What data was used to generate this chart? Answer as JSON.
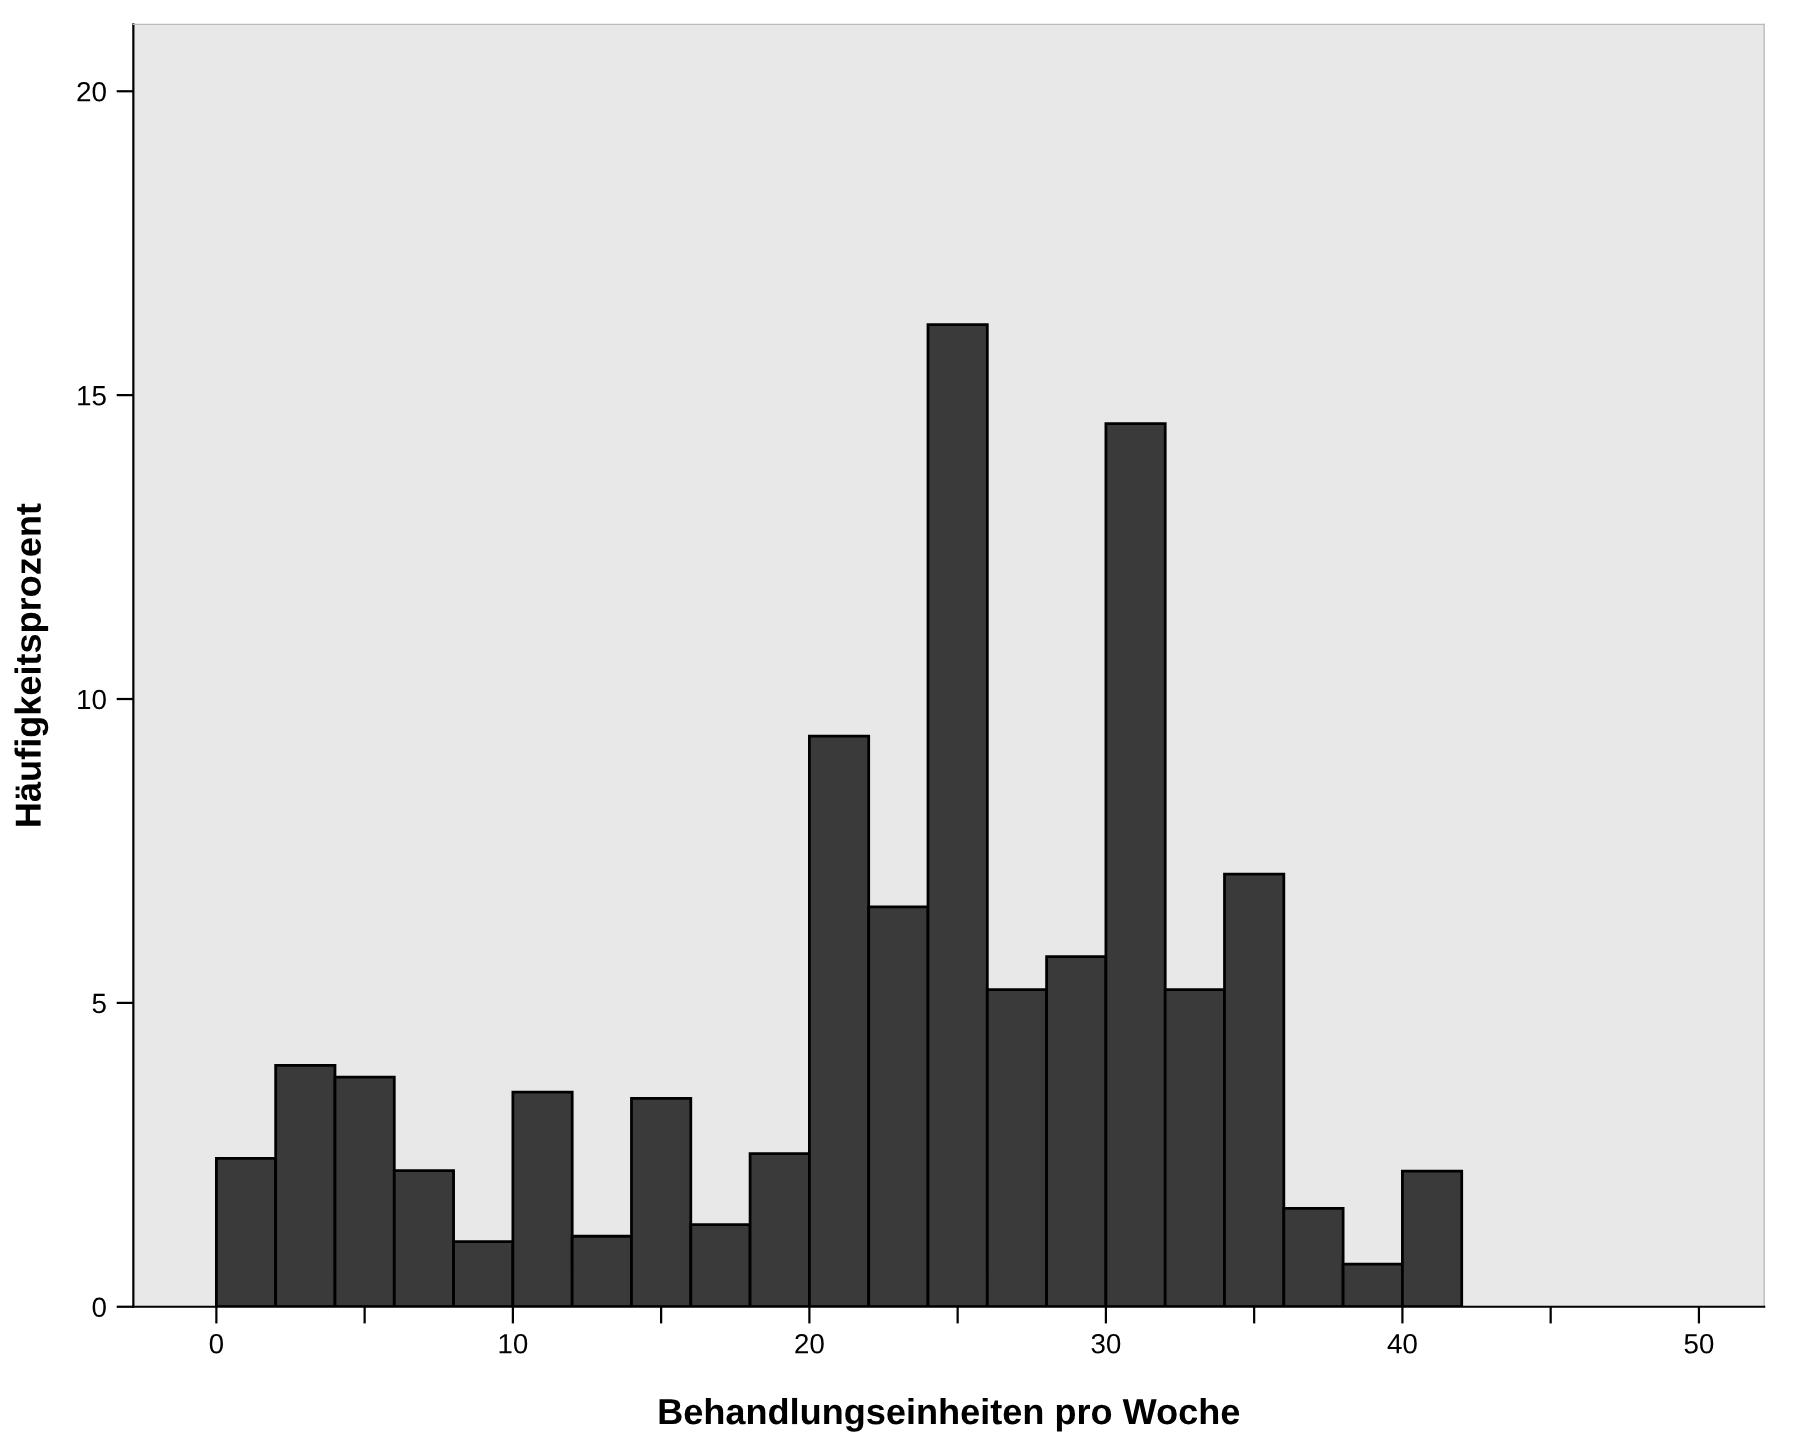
{
  "chart_data": {
    "type": "histogram",
    "xlabel": "Behandlungseinheiten pro Woche",
    "ylabel": "Häufigkeitsprozent",
    "bins": [
      0,
      2,
      4,
      6,
      8,
      10,
      12,
      14,
      16,
      18,
      20,
      22,
      24,
      26,
      28,
      30,
      32,
      34,
      36,
      38,
      40,
      42
    ],
    "values": [
      2.44,
      3.97,
      3.78,
      2.24,
      1.07,
      3.53,
      1.16,
      3.43,
      1.35,
      2.52,
      9.39,
      6.58,
      16.16,
      5.22,
      5.76,
      14.53,
      5.22,
      7.12,
      1.62,
      0.7,
      2.23
    ],
    "color": "#3a3a3a",
    "xlim": [
      -2.8,
      52.2
    ],
    "ylim": [
      0,
      21.1
    ],
    "xticks": [
      0,
      {
        "value": 5,
        "label": null
      },
      10,
      {
        "value": 15,
        "label": null
      },
      20,
      {
        "value": 25,
        "label": null
      },
      30,
      {
        "value": 35,
        "label": null
      },
      40,
      {
        "value": 45,
        "label": null
      },
      50
    ],
    "yticks": [
      0,
      5,
      10,
      15,
      20
    ],
    "grid": false,
    "legend": false
  }
}
